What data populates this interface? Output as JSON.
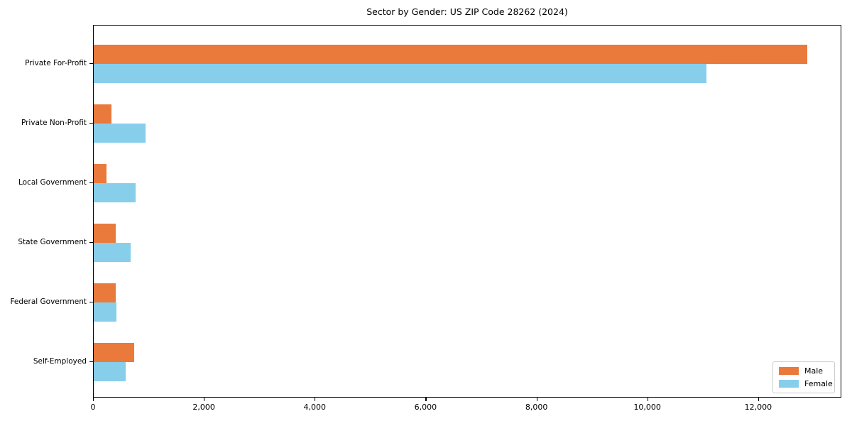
{
  "chart_data": {
    "type": "bar",
    "orientation": "horizontal",
    "title": "Sector by Gender: US ZIP Code 28262 (2024)",
    "categories": [
      "Private For-Profit",
      "Private Non-Profit",
      "Local Government",
      "State Government",
      "Federal Government",
      "Self-Employed"
    ],
    "series": [
      {
        "name": "Male",
        "color": "#e97a3c",
        "values": [
          12870,
          320,
          230,
          400,
          400,
          730
        ]
      },
      {
        "name": "Female",
        "color": "#87ceeb",
        "values": [
          11050,
          940,
          750,
          670,
          410,
          580
        ]
      }
    ],
    "xlabel": "",
    "ylabel": "",
    "xlim": [
      0,
      13500
    ],
    "xticks": [
      0,
      2000,
      4000,
      6000,
      8000,
      10000,
      12000
    ],
    "xtick_labels": [
      "0",
      "2,000",
      "4,000",
      "6,000",
      "8,000",
      "10,000",
      "12,000"
    ],
    "grid": false,
    "legend": {
      "position": "lower right"
    },
    "colors": {
      "background": "#ffffff",
      "spine": "#000000",
      "male": "#e97a3c",
      "female": "#87ceeb"
    }
  }
}
